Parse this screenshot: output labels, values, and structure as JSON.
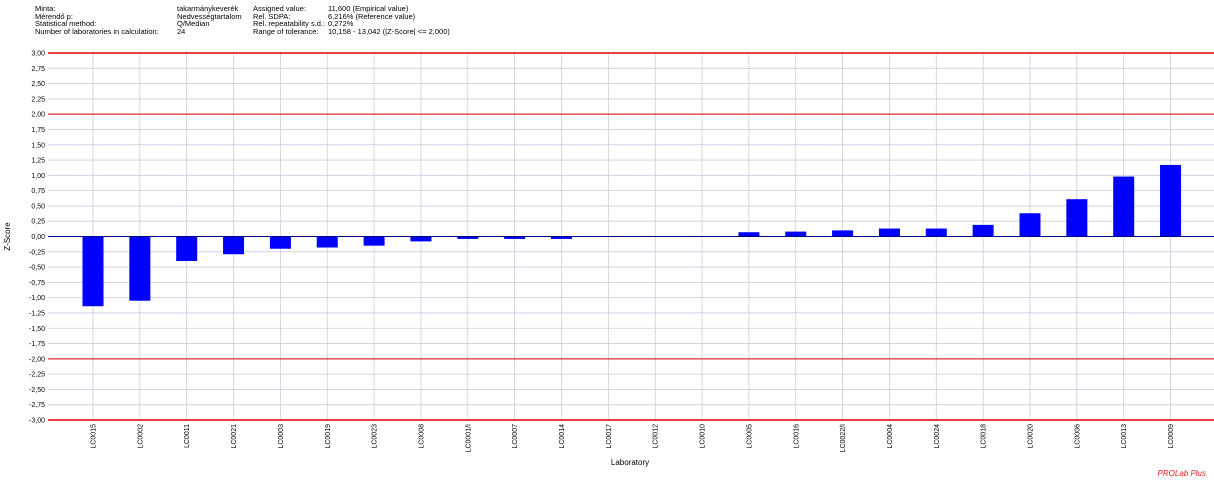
{
  "info": {
    "labels_1": [
      "Minta:",
      "Mérendő p:",
      "Statistical method:",
      "Number of laboratories in calculation:"
    ],
    "values_1": [
      "takarmánykeverék",
      "Nedvességtartalom",
      "Q/Median",
      "24"
    ],
    "labels_2": [
      "Assigned value:",
      "Rel. SDPA:",
      "Rel. repeatability s.d.:",
      "Range of tolerance:"
    ],
    "values_2": [
      "11,600  (Empirical value)",
      "6,216% (Reference value)",
      "0,272%",
      "10,158 - 13,042  (|Z-Score| <= 2,000)"
    ]
  },
  "brand": "PROLab Plus",
  "colors": {
    "bar": "#0000ff",
    "limit_line": "#e00000",
    "zero_line": "#000080",
    "grid": "#c8ccdc"
  },
  "chart_data": {
    "type": "bar",
    "xlabel": "Laboratory",
    "ylabel": "Z-Score",
    "ylim": [
      -3.0,
      3.0
    ],
    "yticks": [
      "3,00",
      "2,75",
      "2,50",
      "2,25",
      "2,00",
      "1,75",
      "1,50",
      "1,25",
      "1,00",
      "0,75",
      "0,50",
      "0,25",
      "0,00",
      "-0,25",
      "-0,50",
      "-0,75",
      "-1,00",
      "-1,25",
      "-1,50",
      "-1,75",
      "-2,00",
      "-2,25",
      "-2,50",
      "-2,75",
      "-3,00"
    ],
    "grid": true,
    "limit_lines": [
      3.0,
      2.0,
      -2.0,
      -3.0
    ],
    "categories": [
      "LC0015",
      "LC0002",
      "LC0011",
      "LC0021",
      "LC0003",
      "LC0019",
      "LC0023",
      "LC0008",
      "LC0001/I",
      "LC0007",
      "LC0014",
      "LC0017",
      "LC0012",
      "LC0010",
      "LC0005",
      "LC0016",
      "LC0022/I",
      "LC0004",
      "LC0024",
      "LC0018",
      "LC0020",
      "LC0006",
      "LC0013",
      "LC0009"
    ],
    "values": [
      -1.14,
      -1.05,
      -0.4,
      -0.29,
      -0.2,
      -0.18,
      -0.15,
      -0.08,
      -0.04,
      -0.04,
      -0.04,
      0.0,
      0.0,
      0.0,
      0.07,
      0.08,
      0.1,
      0.13,
      0.13,
      0.19,
      0.38,
      0.61,
      0.98,
      1.17
    ]
  }
}
